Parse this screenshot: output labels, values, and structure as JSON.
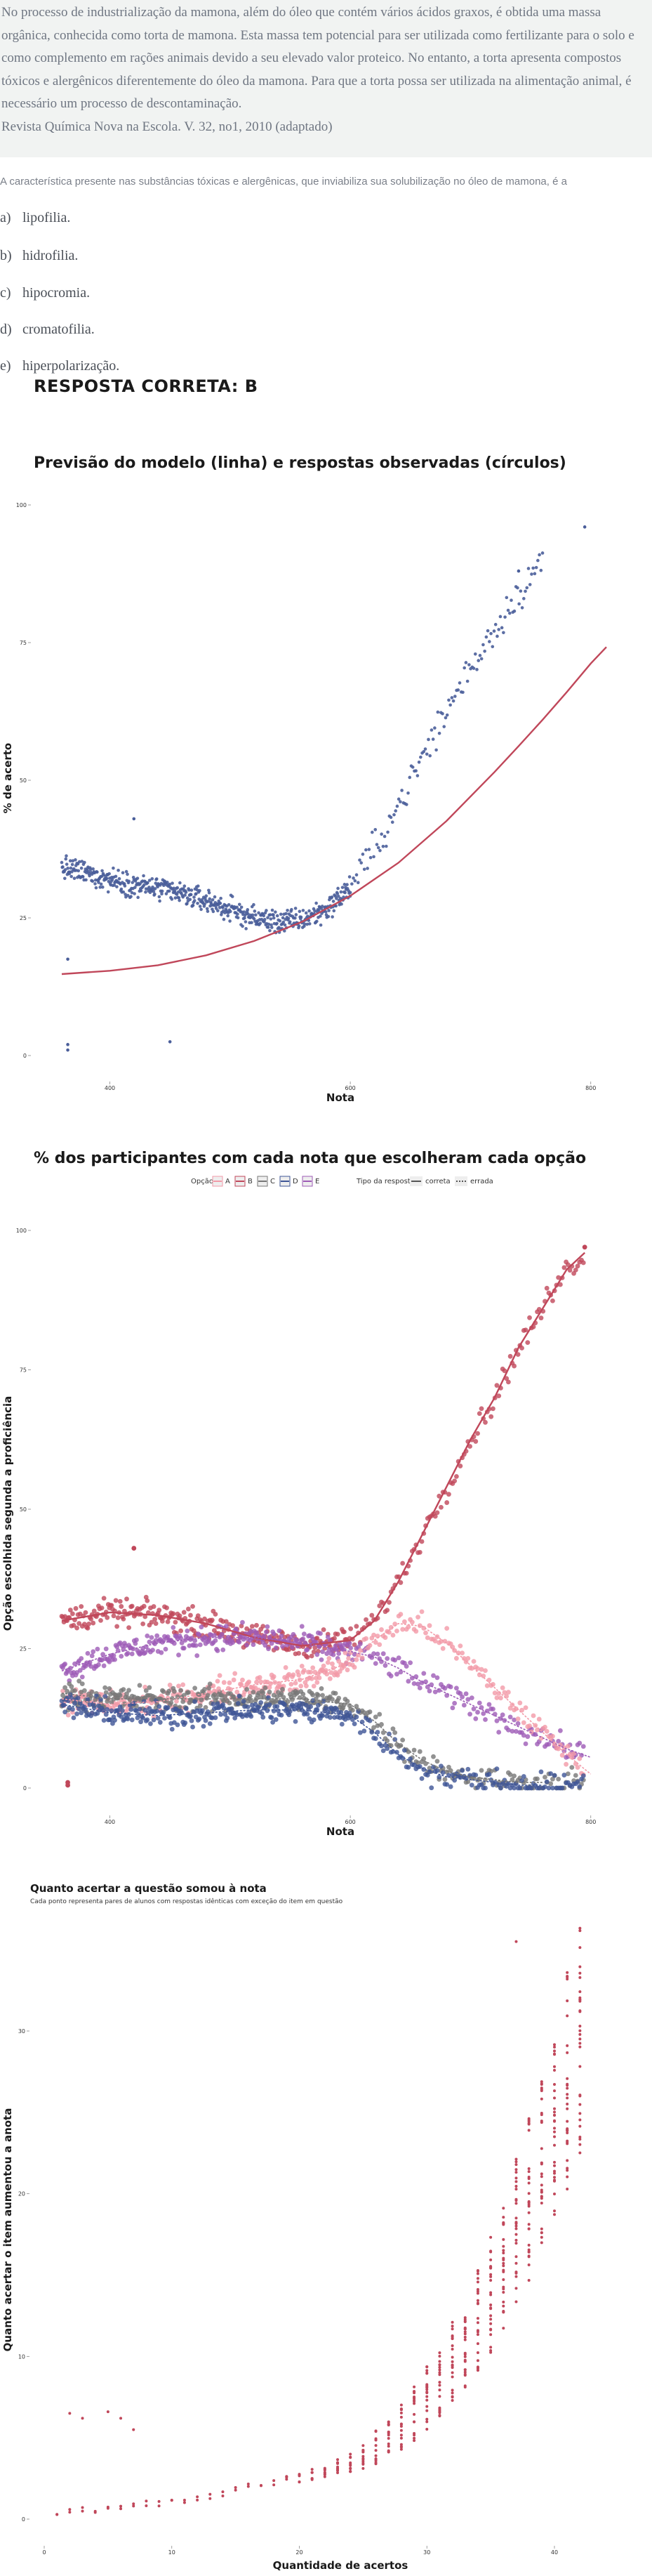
{
  "question": {
    "stem": "No processo de industrialização da mamona, além do óleo que contém vários ácidos graxos, é obtida uma massa orgânica, conhecida como torta de mamona. Esta massa tem potencial para ser utilizada como fertilizante para o solo e como complemento em rações animais devido a seu elevado valor proteico. No entanto, a torta apresenta compostos tóxicos e alergênicos diferentemente do óleo da mamona. Para que a torta possa ser utilizada na alimentação animal, é necessário um processo de descontaminação.",
    "source": "Revista Química Nova na Escola. V. 32, no1, 2010 (adaptado)",
    "prompt": "A característica presente nas substâncias tóxicas e alergênicas, que inviabiliza sua solubilização no óleo de mamona, é a",
    "alternatives": [
      {
        "letter": "a)",
        "text": "lipofilia."
      },
      {
        "letter": "b)",
        "text": "hidrofilia."
      },
      {
        "letter": "c)",
        "text": "hipocromia."
      },
      {
        "letter": "d)",
        "text": "cromatofilia."
      },
      {
        "letter": "e)",
        "text": "hiperpolarização."
      }
    ],
    "answer": "RESPOSTA CORRETA: B"
  },
  "chart_data": [
    {
      "type": "scatter",
      "title": "Previsão do modelo (linha) e respostas observadas (círculos)",
      "xlabel": "Nota",
      "ylabel": "% de acerto",
      "xlim": [
        330,
        810
      ],
      "ylim": [
        0,
        100
      ],
      "xticks": [
        400,
        600,
        800
      ],
      "yticks": [
        0,
        25,
        50,
        75,
        100
      ],
      "grid": false,
      "point_color": "#4a5e9a",
      "line_color": "#c0475a",
      "model_line": [
        [
          360,
          14.8
        ],
        [
          400,
          15.4
        ],
        [
          440,
          16.4
        ],
        [
          480,
          18.2
        ],
        [
          520,
          20.8
        ],
        [
          560,
          24.3
        ],
        [
          600,
          29.0
        ],
        [
          640,
          35.0
        ],
        [
          680,
          42.6
        ],
        [
          720,
          51.5
        ],
        [
          740,
          56.2
        ],
        [
          760,
          61.0
        ],
        [
          780,
          66.0
        ],
        [
          800,
          71.2
        ],
        [
          813,
          74.2
        ]
      ],
      "observed_trend": [
        [
          360,
          34
        ],
        [
          380,
          33.2
        ],
        [
          400,
          32
        ],
        [
          420,
          31
        ],
        [
          440,
          30.3
        ],
        [
          460,
          29.3
        ],
        [
          480,
          28.1
        ],
        [
          500,
          26.5
        ],
        [
          520,
          25
        ],
        [
          540,
          24.2
        ],
        [
          560,
          24.6
        ],
        [
          580,
          26.6
        ],
        [
          600,
          30.5
        ],
        [
          620,
          37.5
        ],
        [
          640,
          45.5
        ],
        [
          660,
          54
        ],
        [
          680,
          62.5
        ],
        [
          700,
          70.5
        ],
        [
          720,
          77.5
        ],
        [
          740,
          84
        ],
        [
          760,
          90
        ],
        [
          780,
          96.5
        ]
      ],
      "outliers": [
        [
          365,
          17.5
        ],
        [
          365,
          2
        ],
        [
          365,
          1
        ],
        [
          420,
          43
        ],
        [
          450,
          2.5
        ],
        [
          795,
          96
        ],
        [
          740,
          88
        ]
      ]
    },
    {
      "type": "scatter",
      "title": "% dos participantes com cada nota que escolheram cada opção",
      "xlabel": "Nota",
      "ylabel": "Opção escolhida segunda a proficiência",
      "xlim": [
        330,
        810
      ],
      "ylim": [
        0,
        100
      ],
      "xticks": [
        400,
        600,
        800
      ],
      "yticks": [
        0,
        25,
        50,
        75,
        100
      ],
      "grid": false,
      "legend": {
        "option_title": "Opção",
        "type_title": "Tipo da resposta",
        "options": [
          {
            "name": "A",
            "color": "#f29aa8"
          },
          {
            "name": "B",
            "color": "#c0475a"
          },
          {
            "name": "C",
            "color": "#777777"
          },
          {
            "name": "D",
            "color": "#3f5596"
          },
          {
            "name": "E",
            "color": "#9d5bb6"
          }
        ],
        "types": [
          {
            "name": "correta",
            "color": "#555555"
          },
          {
            "name": "errada",
            "color": "#555555"
          }
        ],
        "placement": "top"
      },
      "series": [
        {
          "name": "B",
          "color": "#c0475a",
          "points": [
            [
              360,
              30
            ],
            [
              400,
              31.5
            ],
            [
              440,
              31
            ],
            [
              480,
              29.5
            ],
            [
              520,
              27
            ],
            [
              560,
              25.5
            ],
            [
              600,
              26.5
            ],
            [
              620,
              30
            ],
            [
              640,
              37
            ],
            [
              660,
              45.5
            ],
            [
              680,
              54
            ],
            [
              700,
              62.5
            ],
            [
              720,
              70
            ],
            [
              740,
              79
            ],
            [
              760,
              86
            ],
            [
              780,
              93
            ],
            [
              795,
              96
            ]
          ]
        },
        {
          "name": "E",
          "color": "#9d5bb6",
          "points": [
            [
              360,
              21
            ],
            [
              400,
              24
            ],
            [
              440,
              26
            ],
            [
              480,
              27
            ],
            [
              520,
              27
            ],
            [
              560,
              26
            ],
            [
              600,
              24.5
            ],
            [
              620,
              23.5
            ],
            [
              640,
              21.5
            ],
            [
              660,
              19
            ],
            [
              680,
              17
            ],
            [
              700,
              15
            ],
            [
              720,
              13
            ],
            [
              740,
              11
            ],
            [
              760,
              9
            ],
            [
              780,
              7
            ],
            [
              800,
              5.5
            ]
          ]
        },
        {
          "name": "A",
          "color": "#f29aa8",
          "points": [
            [
              360,
              16
            ],
            [
              400,
              15
            ],
            [
              440,
              15.5
            ],
            [
              480,
              17
            ],
            [
              520,
              18.5
            ],
            [
              560,
              19.5
            ],
            [
              600,
              22.5
            ],
            [
              620,
              26.5
            ],
            [
              640,
              29.5
            ],
            [
              660,
              29
            ],
            [
              680,
              26
            ],
            [
              700,
              22
            ],
            [
              720,
              18
            ],
            [
              740,
              14
            ],
            [
              760,
              10
            ],
            [
              780,
              6
            ],
            [
              800,
              2.5
            ]
          ]
        },
        {
          "name": "C",
          "color": "#777777",
          "points": [
            [
              360,
              17
            ],
            [
              400,
              16
            ],
            [
              440,
              16
            ],
            [
              480,
              16
            ],
            [
              520,
              16
            ],
            [
              560,
              16
            ],
            [
              600,
              15
            ],
            [
              620,
              12
            ],
            [
              640,
              8
            ],
            [
              660,
              5
            ],
            [
              680,
              3
            ],
            [
              700,
              2
            ],
            [
              720,
              1.5
            ],
            [
              740,
              1
            ],
            [
              760,
              1
            ]
          ]
        },
        {
          "name": "D",
          "color": "#3f5596",
          "points": [
            [
              360,
              15
            ],
            [
              400,
              13.5
            ],
            [
              440,
              13
            ],
            [
              480,
              13.5
            ],
            [
              520,
              14
            ],
            [
              560,
              14
            ],
            [
              600,
              13
            ],
            [
              620,
              10
            ],
            [
              640,
              6
            ],
            [
              660,
              3.5
            ],
            [
              680,
              2
            ],
            [
              700,
              1.5
            ],
            [
              720,
              1
            ],
            [
              740,
              0.5
            ],
            [
              760,
              0.5
            ]
          ]
        }
      ],
      "outliers": [
        [
          365,
          1
        ],
        [
          365,
          0.5
        ],
        [
          420,
          43
        ],
        [
          795,
          97
        ]
      ]
    },
    {
      "type": "scatter",
      "title": "Quanto acertar a questão somou à nota",
      "subtitle": "Cada ponto representa pares de alunos com respostas idênticas com exceção do item em questão",
      "xlabel": "Quantidade de acertos",
      "ylabel": "Quanto acertar o item aumentou a anota",
      "xlim": [
        -0.5,
        43
      ],
      "ylim": [
        -1,
        37
      ],
      "xticks": [
        0,
        10,
        20,
        30,
        40
      ],
      "yticks": [
        0,
        10,
        20,
        30
      ],
      "grid": false,
      "point_color": "#c0475a"
    }
  ]
}
